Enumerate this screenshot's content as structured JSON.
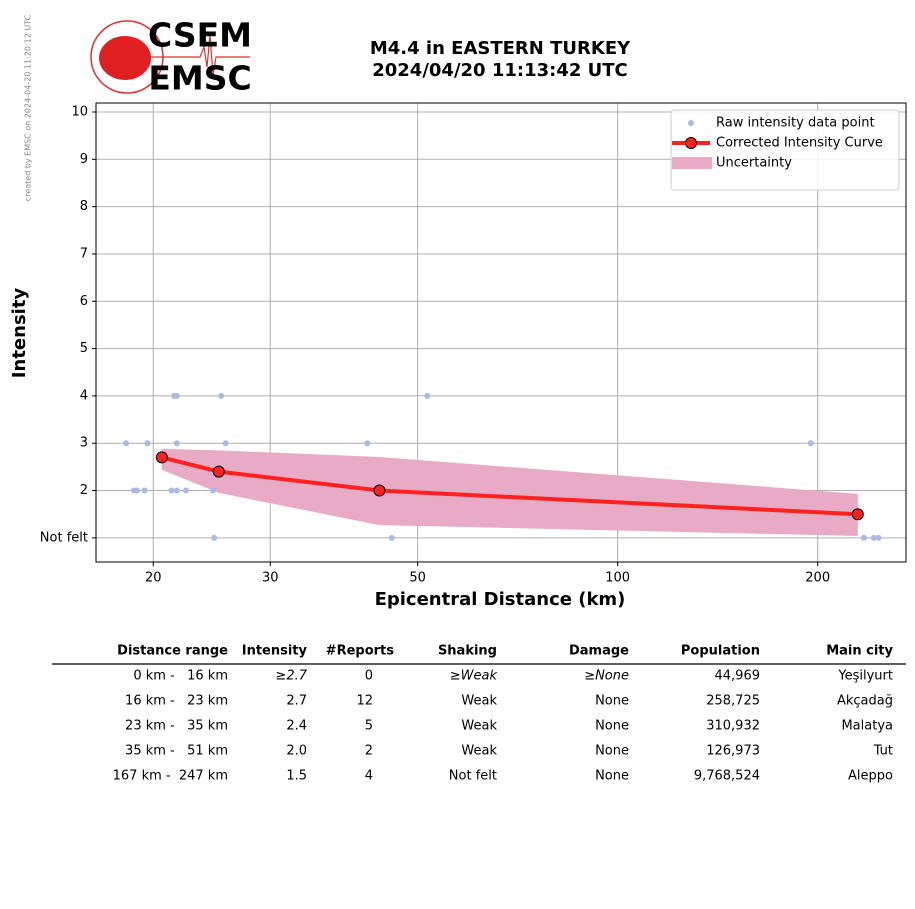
{
  "header": {
    "side_note": "created by EMSC on 2024-04-20 11:20:12 UTC",
    "logo_top": "CSEM",
    "logo_bottom": "EMSC"
  },
  "chart_data": {
    "type": "line",
    "title": "M4.4 in EASTERN TURKEY",
    "subtitle": "2024/04/20 11:13:42 UTC",
    "x_label": "Epicentral Distance (km)",
    "y_label": "Intensity",
    "log_x": true,
    "grid": true,
    "legend": "upper right",
    "xlim": [
      16.4,
      271.6
    ],
    "xticks": [
      20,
      30,
      50,
      100,
      200
    ],
    "ylim": [
      0.49,
      10.19
    ],
    "yticks": [
      {
        "value": 1,
        "label": "Not felt"
      },
      2,
      3,
      4,
      5,
      6,
      7,
      8,
      9,
      10
    ],
    "series": [
      {
        "name": "Raw intensity data point",
        "kind": "scatter",
        "color": "#aab9e6",
        "x": [
          18.2,
          19.6,
          21.7,
          25.7,
          42.0,
          195.3,
          21.5,
          21.7,
          25.3,
          51.7,
          18.7,
          18.9,
          19.4,
          21.3,
          21.7,
          22.4,
          24.6,
          24.7,
          45.7,
          234.7,
          243,
          247
        ],
        "values": [
          3,
          3,
          3,
          3,
          3,
          3,
          4,
          4,
          4,
          4,
          2,
          2,
          2,
          2,
          2,
          2,
          2,
          1,
          1,
          1,
          1,
          1
        ]
      },
      {
        "name": "Corrected Intensity Curve",
        "kind": "line",
        "color": "#ff2020",
        "x": [
          20.6,
          25.1,
          43.8,
          229.8
        ],
        "values": [
          2.7,
          2.4,
          2.0,
          1.5
        ]
      },
      {
        "name": "Uncertainty",
        "kind": "band",
        "color": "#e8aac5",
        "x": [
          20.6,
          25.1,
          43.8,
          229.8
        ],
        "upper": [
          2.88,
          2.85,
          2.71,
          1.93
        ],
        "lower": [
          2.44,
          1.95,
          1.27,
          1.04
        ]
      }
    ]
  },
  "table": {
    "columns": [
      "Distance range",
      "Intensity",
      "#Reports",
      "Shaking",
      "Damage",
      "Population",
      "Main city"
    ],
    "rows": [
      [
        "0 km -   16 km",
        "≥2.7",
        "0",
        "≥Weak",
        "≥None",
        "44,969",
        "Yeşilyurt"
      ],
      [
        "16 km -   23 km",
        "2.7",
        "12",
        "Weak",
        "None",
        "258,725",
        "Akçadağ"
      ],
      [
        "23 km -   35 km",
        "2.4",
        "5",
        "Weak",
        "None",
        "310,932",
        "Malatya"
      ],
      [
        "35 km -   51 km",
        "2.0",
        "2",
        "Weak",
        "None",
        "126,973",
        "Tut"
      ],
      [
        "167 km -  247 km",
        "1.5",
        "4",
        "Not felt",
        "None",
        "9,768,524",
        "Aleppo"
      ]
    ]
  }
}
